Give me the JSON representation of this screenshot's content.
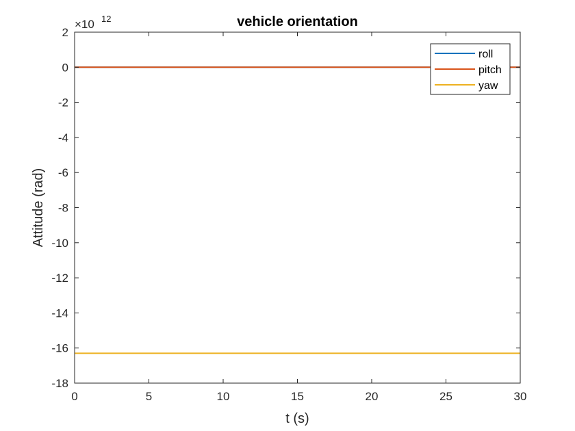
{
  "chart_data": {
    "type": "line",
    "title": "vehicle orientation",
    "xlabel": "t (s)",
    "ylabel": "Attitude (rad)",
    "xlim": [
      0,
      30
    ],
    "ylim": [
      -18,
      2
    ],
    "xticks": [
      0,
      5,
      10,
      15,
      20,
      25,
      30
    ],
    "yticks": [
      2,
      0,
      -2,
      -4,
      -6,
      -8,
      -10,
      -12,
      -14,
      -16,
      -18
    ],
    "y_exponent": {
      "base": "×10",
      "power": "12"
    },
    "grid": false,
    "legend_position": "top-right",
    "series": [
      {
        "name": "roll",
        "color": "#0072BD",
        "x": [
          0,
          30
        ],
        "y": [
          0,
          0
        ]
      },
      {
        "name": "pitch",
        "color": "#D95319",
        "x": [
          0,
          30
        ],
        "y": [
          0,
          0
        ]
      },
      {
        "name": "yaw",
        "color": "#EDB120",
        "x": [
          0,
          30
        ],
        "y": [
          -16.3,
          -16.3
        ]
      }
    ]
  }
}
